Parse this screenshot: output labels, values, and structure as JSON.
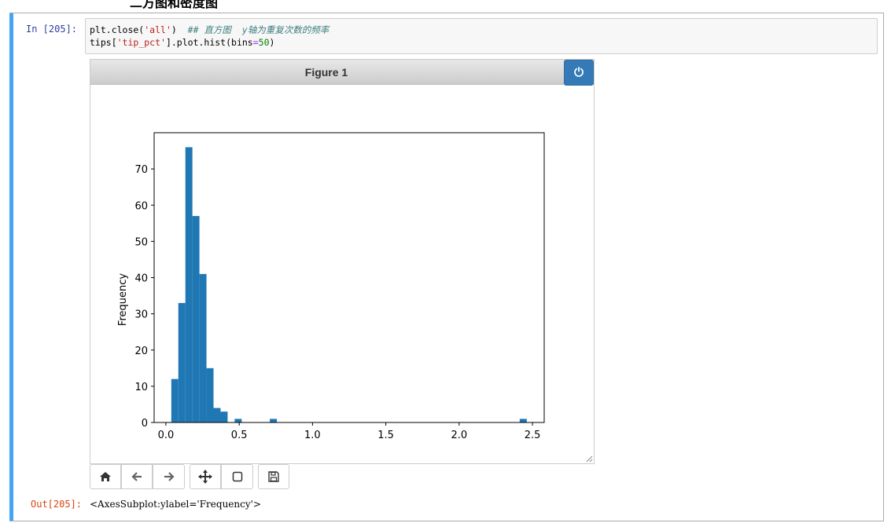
{
  "heading": "二方图和密度图",
  "cell": {
    "in_prompt": "In  [205]:",
    "out_prompt": "Out[205]:",
    "code": {
      "line1_a": "plt.close(",
      "line1_str": "'all'",
      "line1_b": ")  ",
      "line1_comment": "## 直方图  y轴为重复次数的频率",
      "line2_a": "tips[",
      "line2_str": "'tip_pct'",
      "line2_b": "].plot.hist(bins",
      "line2_op": "=",
      "line2_num": "50",
      "line2_c": ")"
    },
    "output": "<AxesSubplot:ylabel='Frequency'>"
  },
  "figure": {
    "title": "Figure 1",
    "power_icon": "power-icon",
    "accent_color": "#337ab7",
    "toolbar": [
      "home-icon",
      "back-arrow-icon",
      "forward-arrow-icon",
      "move-icon",
      "zoom-rect-icon",
      "save-icon"
    ]
  },
  "chart_data": {
    "type": "bar",
    "title": "",
    "xlabel": "",
    "ylabel": "Frequency",
    "xlim": [
      -0.08,
      2.58
    ],
    "ylim": [
      0,
      80
    ],
    "x_ticks": [
      0.0,
      0.5,
      1.0,
      1.5,
      2.0,
      2.5
    ],
    "x_tick_labels": [
      "0.0",
      "0.5",
      "1.0",
      "1.5",
      "2.0",
      "2.5"
    ],
    "y_ticks": [
      0,
      10,
      20,
      30,
      40,
      50,
      60,
      70
    ],
    "y_tick_labels": [
      "0",
      "10",
      "20",
      "30",
      "40",
      "50",
      "60",
      "70"
    ],
    "bar_color": "#1f77b4",
    "bin_width": 0.048,
    "bins": [
      {
        "x": 0.037,
        "value": 12
      },
      {
        "x": 0.085,
        "value": 33
      },
      {
        "x": 0.133,
        "value": 76
      },
      {
        "x": 0.181,
        "value": 57
      },
      {
        "x": 0.229,
        "value": 41
      },
      {
        "x": 0.277,
        "value": 15
      },
      {
        "x": 0.325,
        "value": 4
      },
      {
        "x": 0.373,
        "value": 3
      },
      {
        "x": 0.469,
        "value": 1
      },
      {
        "x": 0.709,
        "value": 1
      },
      {
        "x": 2.413,
        "value": 1
      }
    ],
    "grid": false,
    "legend": "none"
  }
}
